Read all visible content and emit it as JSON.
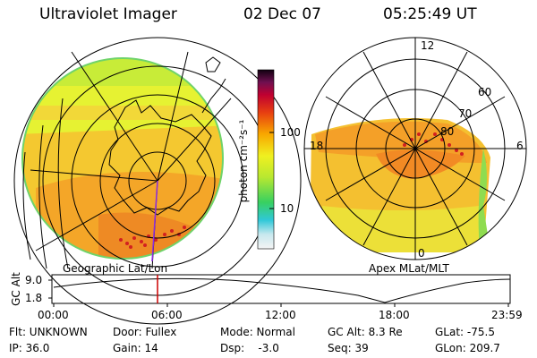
{
  "header": {
    "instrument": "Ultraviolet Imager",
    "date": "02 Dec 07",
    "time": "05:25:49 UT"
  },
  "colorbar": {
    "unit_label": "photon cm⁻²s⁻¹",
    "tick_labels": [
      "100",
      "10"
    ],
    "tick_values": [
      100,
      10
    ]
  },
  "left_panel": {
    "caption": "Geographic Lat/Lon"
  },
  "right_panel": {
    "caption": "Apex  MLat/MLT",
    "mlt_labels": {
      "top": "12",
      "left": "18",
      "right": "6",
      "bottom": "0"
    },
    "mlat_labels": [
      "60",
      "70",
      "80"
    ]
  },
  "altitude_plot": {
    "ylabel": "GC Alt",
    "y_ticks": [
      "9.0",
      "1.8"
    ],
    "y_values": [
      9.0,
      1.8
    ],
    "x_ticks": [
      "00:00",
      "06:00",
      "12:00",
      "18:00",
      "23:59"
    ],
    "marker_time": "05:25:49",
    "marker_color": "#cc0000"
  },
  "status": {
    "filter": "Flt: UNKNOWN",
    "ip": "IP: 36.0",
    "door": "Door: Fullex",
    "gain": "Gain: 14",
    "mode": "Mode: Normal",
    "dsp": "Dsp:    -3.0",
    "gc_alt": "GC Alt: 8.3 Re",
    "seq": "Seq: 39",
    "glat": "GLat: -75.5",
    "glon": "GLon: 209.7"
  }
}
